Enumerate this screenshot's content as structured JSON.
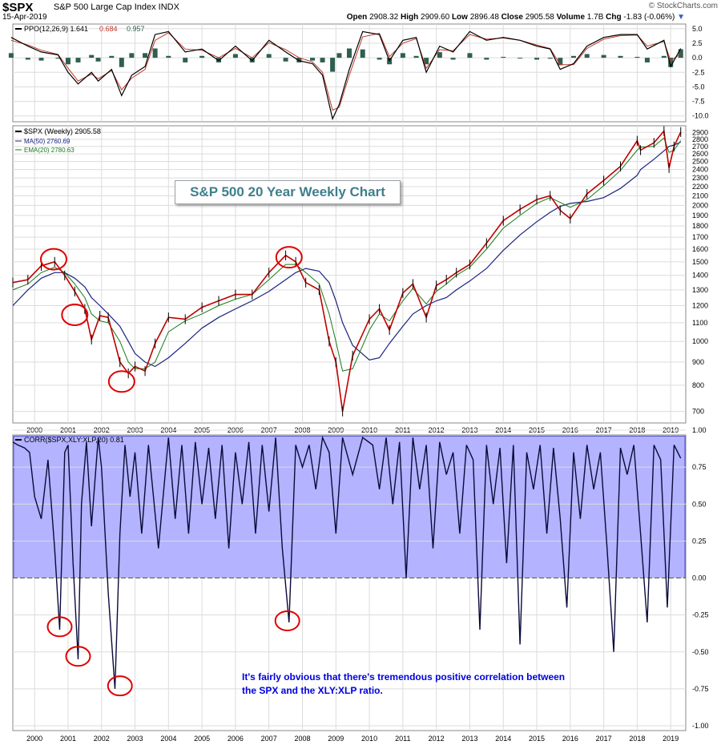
{
  "header": {
    "symbol": "$SPX",
    "name": "S&P 500 Large Cap Index INDX",
    "date": "15-Apr-2019",
    "open_label": "Open",
    "open": "2908.32",
    "high_label": "High",
    "high": "2909.60",
    "low_label": "Low",
    "low": "2896.48",
    "close_label": "Close",
    "close": "2905.58",
    "volume_label": "Volume",
    "volume": "1.7B",
    "chg_label": "Chg",
    "chg": "-1.83 (-0.06%)",
    "brand": "© StockCharts.com"
  },
  "annotations": {
    "title_box": "S&P 500 20 Year Weekly Chart",
    "note": "It's fairly obvious that there's tremendous positive correlation between the SPX and the XLY:XLP ratio."
  },
  "colors": {
    "price_bars": "#c00000",
    "ma50": "#1a237e",
    "ema20": "#1b7a1b",
    "ppo_line": "#000000",
    "ppo_signal": "#c0392b",
    "ppo_hist": "#2f5f4f",
    "corr_line": "#0a0a3a",
    "corr_fill": "#b3b3ff",
    "circles": "#e00000",
    "grid": "#dcdcdc"
  },
  "chart_data": [
    {
      "type": "line",
      "panel": "ppo",
      "legend": [
        "PPO(12,26,9) 1.641",
        "0.684",
        "0.957"
      ],
      "y_ticks": [
        5.0,
        2.5,
        0.0,
        -2.5,
        -5.0,
        -7.5,
        -10.0
      ],
      "y_tick_labels": [
        "5.0",
        "2.5",
        "0.0",
        "-2.5",
        "-5.0",
        "-7.5",
        "-10.0"
      ],
      "ylim": [
        -11,
        5.8
      ],
      "x": [
        1999.3,
        1999.8,
        2000.2,
        2000.7,
        2001.0,
        2001.3,
        2001.7,
        2001.9,
        2002.3,
        2002.6,
        2002.9,
        2003.3,
        2003.6,
        2004.0,
        2004.5,
        2005.0,
        2005.5,
        2006.0,
        2006.5,
        2007.0,
        2007.5,
        2007.9,
        2008.3,
        2008.6,
        2008.9,
        2009.1,
        2009.4,
        2009.8,
        2010.3,
        2010.6,
        2011.0,
        2011.4,
        2011.7,
        2012.1,
        2012.5,
        2013.0,
        2013.5,
        2014.0,
        2014.5,
        2015.0,
        2015.4,
        2015.7,
        2016.1,
        2016.5,
        2017.0,
        2017.5,
        2018.0,
        2018.3,
        2018.8,
        2019.0,
        2019.3
      ],
      "series": [
        {
          "values": [
            3.5,
            2.0,
            1.0,
            0.5,
            -2.5,
            -4.5,
            -2.5,
            -4.0,
            -2.0,
            -6.5,
            -3.0,
            -1.5,
            4.0,
            4.5,
            1.0,
            1.5,
            -0.5,
            2.0,
            -0.5,
            3.0,
            1.0,
            -0.5,
            -1.0,
            -3.0,
            -10.5,
            -8.0,
            -2.0,
            4.5,
            4.0,
            -0.5,
            3.0,
            3.5,
            -2.5,
            2.0,
            1.0,
            4.5,
            3.0,
            3.5,
            3.0,
            2.0,
            1.5,
            -2.0,
            -1.0,
            2.0,
            3.5,
            4.0,
            4.0,
            1.5,
            3.0,
            -1.5,
            1.6
          ]
        },
        {
          "name": "0.684",
          "values": [
            3.0,
            2.2,
            1.3,
            0.6,
            -1.8,
            -4.0,
            -2.8,
            -3.6,
            -2.2,
            -5.5,
            -3.5,
            -2.0,
            3.0,
            4.3,
            1.5,
            1.3,
            0.0,
            1.6,
            0.0,
            2.6,
            1.4,
            0.0,
            -0.7,
            -2.5,
            -9.0,
            -8.5,
            -3.0,
            3.6,
            4.2,
            0.2,
            2.5,
            3.3,
            -1.8,
            1.4,
            1.2,
            4.0,
            3.2,
            3.4,
            3.0,
            2.2,
            1.6,
            -1.2,
            -1.2,
            1.6,
            3.2,
            3.8,
            3.9,
            2.0,
            2.8,
            -0.5,
            0.68
          ]
        }
      ]
    },
    {
      "type": "line",
      "panel": "price",
      "legend": [
        "$SPX (Weekly) 2905.58",
        "MA(50) 2760.69",
        "EMA(20) 2780.63"
      ],
      "y_ticks": [
        700,
        800,
        900,
        1000,
        1100,
        1200,
        1300,
        1400,
        1500,
        1600,
        1700,
        1800,
        1900,
        2000,
        2100,
        2200,
        2300,
        2400,
        2500,
        2600,
        2700,
        2800,
        2900
      ],
      "y_tick_labels": [
        "700",
        "800",
        "900",
        "1000",
        "1100",
        "1200",
        "1300",
        "1400",
        "1500",
        "1600",
        "1700",
        "1800",
        "1900",
        "2000",
        "2100",
        "2200",
        "2300",
        "2400",
        "2500",
        "2600",
        "2700",
        "2800",
        "2900"
      ],
      "y_scale": "log",
      "ylim": [
        660,
        3000
      ],
      "x_ticks": [
        2000,
        2001,
        2002,
        2003,
        2004,
        2005,
        2006,
        2007,
        2008,
        2009,
        2010,
        2011,
        2012,
        2013,
        2014,
        2015,
        2016,
        2017,
        2018,
        2019
      ],
      "x_tick_labels": [
        "2000",
        "2001",
        "2002",
        "2003",
        "2004",
        "2005",
        "2006",
        "2007",
        "2008",
        "2009",
        "2010",
        "2011",
        "2012",
        "2013",
        "2014",
        "2015",
        "2016",
        "2017",
        "2018",
        "2019"
      ],
      "xlim": [
        1999.35,
        2019.45
      ],
      "x": [
        1999.35,
        1999.8,
        2000.2,
        2000.6,
        2000.9,
        2001.2,
        2001.5,
        2001.7,
        2001.95,
        2002.2,
        2002.55,
        2002.8,
        2003.0,
        2003.3,
        2003.6,
        2004.0,
        2004.5,
        2005.0,
        2005.5,
        2006.0,
        2006.5,
        2007.0,
        2007.5,
        2007.8,
        2008.1,
        2008.5,
        2008.8,
        2009.0,
        2009.2,
        2009.5,
        2010.0,
        2010.3,
        2010.6,
        2011.0,
        2011.3,
        2011.7,
        2012.0,
        2012.3,
        2012.6,
        2013.0,
        2013.5,
        2014.0,
        2014.5,
        2015.0,
        2015.4,
        2015.7,
        2016.0,
        2016.5,
        2017.0,
        2017.5,
        2018.0,
        2018.1,
        2018.5,
        2018.8,
        2018.95,
        2019.1,
        2019.3
      ],
      "series": [
        {
          "name": "$SPX (Weekly)",
          "values": [
            1350,
            1370,
            1470,
            1500,
            1400,
            1290,
            1180,
            1010,
            1140,
            1130,
            900,
            850,
            880,
            860,
            990,
            1130,
            1120,
            1190,
            1230,
            1270,
            1270,
            1420,
            1550,
            1500,
            1350,
            1300,
            1000,
            900,
            700,
            930,
            1120,
            1180,
            1060,
            1280,
            1340,
            1130,
            1330,
            1370,
            1420,
            1480,
            1650,
            1850,
            1960,
            2060,
            2100,
            1950,
            1870,
            2120,
            2270,
            2440,
            2780,
            2650,
            2750,
            2920,
            2420,
            2700,
            2906
          ]
        },
        {
          "name": "MA(50)",
          "values": [
            1200,
            1300,
            1380,
            1420,
            1420,
            1380,
            1320,
            1250,
            1200,
            1150,
            1080,
            1000,
            940,
            900,
            880,
            920,
            990,
            1070,
            1130,
            1180,
            1230,
            1290,
            1370,
            1420,
            1450,
            1430,
            1350,
            1230,
            1100,
            980,
            910,
            920,
            990,
            1080,
            1150,
            1200,
            1230,
            1250,
            1300,
            1360,
            1450,
            1590,
            1720,
            1840,
            1930,
            1990,
            2020,
            2040,
            2080,
            2180,
            2330,
            2400,
            2530,
            2640,
            2700,
            2720,
            2760
          ]
        },
        {
          "name": "EMA(20)",
          "values": [
            1300,
            1340,
            1420,
            1460,
            1420,
            1340,
            1250,
            1150,
            1110,
            1100,
            1000,
            900,
            870,
            870,
            900,
            1050,
            1110,
            1150,
            1200,
            1240,
            1270,
            1370,
            1480,
            1480,
            1420,
            1340,
            1150,
            1000,
            860,
            870,
            1060,
            1150,
            1110,
            1230,
            1310,
            1210,
            1290,
            1340,
            1400,
            1460,
            1600,
            1780,
            1900,
            2020,
            2080,
            2030,
            1980,
            2060,
            2210,
            2390,
            2650,
            2690,
            2700,
            2820,
            2620,
            2650,
            2781
          ]
        }
      ]
    },
    {
      "type": "area",
      "panel": "correlation",
      "legend": [
        "CORR($SPX,XLY:XLP,20) 0.81"
      ],
      "y_ticks": [
        1.0,
        0.75,
        0.5,
        0.25,
        0.0,
        -0.25,
        -0.5,
        -0.75,
        -1.0
      ],
      "y_tick_labels": [
        "1.00",
        "0.75",
        "0.50",
        "0.25",
        "0.00",
        "-0.25",
        "-0.50",
        "-0.75",
        "-1.00"
      ],
      "ylim": [
        -1.0,
        1.0
      ],
      "shaded_range": [
        0.0,
        0.96
      ],
      "x_ticks": [
        2000,
        2001,
        2002,
        2003,
        2004,
        2005,
        2006,
        2007,
        2008,
        2009,
        2010,
        2011,
        2012,
        2013,
        2014,
        2015,
        2016,
        2017,
        2018,
        2019
      ],
      "x_tick_labels": [
        "2000",
        "2001",
        "2002",
        "2003",
        "2004",
        "2005",
        "2006",
        "2007",
        "2008",
        "2009",
        "2010",
        "2011",
        "2012",
        "2013",
        "2014",
        "2015",
        "2016",
        "2017",
        "2018",
        "2019"
      ],
      "x": [
        1999.35,
        1999.5,
        1999.7,
        1999.85,
        2000.0,
        2000.2,
        2000.4,
        2000.6,
        2000.75,
        2000.9,
        2001.0,
        2001.15,
        2001.3,
        2001.4,
        2001.55,
        2001.7,
        2001.9,
        2002.0,
        2002.2,
        2002.4,
        2002.55,
        2002.7,
        2002.85,
        2003.0,
        2003.2,
        2003.4,
        2003.7,
        2004.0,
        2004.2,
        2004.4,
        2004.6,
        2004.8,
        2005.0,
        2005.2,
        2005.4,
        2005.6,
        2005.8,
        2006.0,
        2006.2,
        2006.4,
        2006.6,
        2006.8,
        2007.0,
        2007.2,
        2007.4,
        2007.6,
        2007.8,
        2008.0,
        2008.2,
        2008.4,
        2008.6,
        2008.8,
        2009.0,
        2009.2,
        2009.5,
        2009.8,
        2010.1,
        2010.3,
        2010.5,
        2010.7,
        2010.9,
        2011.1,
        2011.3,
        2011.5,
        2011.7,
        2011.9,
        2012.1,
        2012.3,
        2012.5,
        2012.7,
        2012.9,
        2013.1,
        2013.3,
        2013.5,
        2013.7,
        2013.9,
        2014.1,
        2014.3,
        2014.5,
        2014.7,
        2014.9,
        2015.1,
        2015.3,
        2015.5,
        2015.7,
        2015.9,
        2016.1,
        2016.3,
        2016.5,
        2016.7,
        2016.9,
        2017.1,
        2017.3,
        2017.5,
        2017.7,
        2017.9,
        2018.1,
        2018.3,
        2018.5,
        2018.7,
        2018.9,
        2019.1,
        2019.3
      ],
      "series": [
        {
          "name": "CORR($SPX,XLY:XLP,20)",
          "values": [
            0.92,
            0.9,
            0.88,
            0.85,
            0.55,
            0.4,
            0.8,
            0.2,
            -0.35,
            0.85,
            0.9,
            0.1,
            -0.55,
            0.5,
            0.92,
            0.35,
            0.95,
            0.75,
            -0.1,
            -0.75,
            0.3,
            0.9,
            0.55,
            0.85,
            0.3,
            0.9,
            0.2,
            0.95,
            0.4,
            0.9,
            0.3,
            0.92,
            0.5,
            0.88,
            0.4,
            0.9,
            0.2,
            0.85,
            0.5,
            0.92,
            0.3,
            0.9,
            0.45,
            0.95,
            0.2,
            -0.3,
            0.9,
            0.75,
            0.9,
            0.6,
            0.95,
            0.85,
            0.3,
            0.95,
            0.7,
            0.95,
            0.9,
            0.6,
            0.95,
            0.5,
            0.92,
            0.0,
            0.95,
            0.6,
            0.9,
            0.2,
            0.92,
            0.7,
            0.85,
            0.3,
            0.9,
            0.8,
            -0.35,
            0.9,
            0.5,
            0.88,
            0.1,
            0.9,
            -0.45,
            0.85,
            0.6,
            0.9,
            0.3,
            0.88,
            0.4,
            -0.2,
            0.85,
            0.4,
            0.9,
            0.6,
            0.85,
            0.2,
            -0.5,
            0.88,
            0.7,
            0.9,
            0.3,
            -0.3,
            0.9,
            0.8,
            -0.2,
            0.9,
            0.81
          ]
        }
      ]
    }
  ]
}
